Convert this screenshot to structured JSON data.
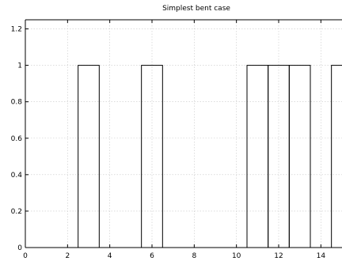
{
  "chart_data": {
    "type": "bar",
    "title": "Simplest bent case",
    "xlabel": "",
    "ylabel": "",
    "xlim": [
      0,
      15
    ],
    "ylim": [
      0,
      1.25
    ],
    "grid": true,
    "x_ticks": [
      0,
      2,
      4,
      6,
      8,
      10,
      12,
      14
    ],
    "x_tick_labels": [
      "0",
      "2",
      "4",
      "6",
      "8",
      "10",
      "12",
      "14"
    ],
    "y_ticks": [
      0,
      0.2,
      0.4,
      0.6,
      0.8,
      1,
      1.2
    ],
    "y_tick_labels": [
      "0",
      "0.2",
      "0.4",
      "0.6",
      "0.8",
      "1",
      "1.2"
    ],
    "bars": [
      {
        "x0": 2.5,
        "x1": 3.5,
        "value": 1
      },
      {
        "x0": 5.5,
        "x1": 6.5,
        "value": 1
      },
      {
        "x0": 10.5,
        "x1": 11.5,
        "value": 1
      },
      {
        "x0": 11.5,
        "x1": 12.5,
        "value": 1
      },
      {
        "x0": 12.5,
        "x1": 13.5,
        "value": 1
      },
      {
        "x0": 14.5,
        "x1": 15.5,
        "value": 1
      }
    ],
    "colors": {
      "bar_stroke": "#000000",
      "grid": "#c8c8c8"
    }
  }
}
